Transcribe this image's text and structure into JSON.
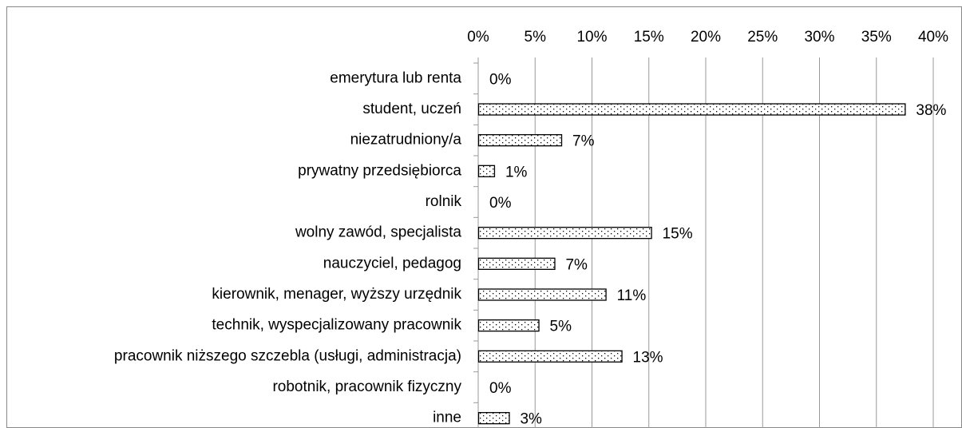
{
  "chart_data": {
    "type": "bar",
    "orientation": "horizontal",
    "categories": [
      "emerytura lub renta",
      "student, uczeń",
      "niezatrudniony/a",
      "prywatny przedsiębiorca",
      "rolnik",
      "wolny zawód, specjalista",
      "nauczyciel, pedagog",
      "kierownik, menager, wyższy urzędnik",
      "technik, wyspecjalizowany pracownik",
      "pracownik niższego szczebla (usługi, administracja)",
      "robotnik, pracownik fizyczny",
      "inne"
    ],
    "values": [
      0,
      37.5,
      7.3,
      1.4,
      0,
      15.2,
      6.7,
      11.2,
      5.3,
      12.6,
      0,
      2.7
    ],
    "value_labels": [
      "0%",
      "38%",
      "7%",
      "1%",
      "0%",
      "15%",
      "7%",
      "11%",
      "5%",
      "13%",
      "0%",
      "3%"
    ],
    "xlim": [
      0,
      40
    ],
    "xticks": [
      {
        "value": 0,
        "label": "0%"
      },
      {
        "value": 5,
        "label": "5%"
      },
      {
        "value": 10,
        "label": "10%"
      },
      {
        "value": 15,
        "label": "15%"
      },
      {
        "value": 20,
        "label": "20%"
      },
      {
        "value": 25,
        "label": "25%"
      },
      {
        "value": 30,
        "label": "30%"
      },
      {
        "value": 35,
        "label": "35%"
      },
      {
        "value": 40,
        "label": "40%"
      }
    ],
    "grid": true,
    "color": "#000000"
  }
}
